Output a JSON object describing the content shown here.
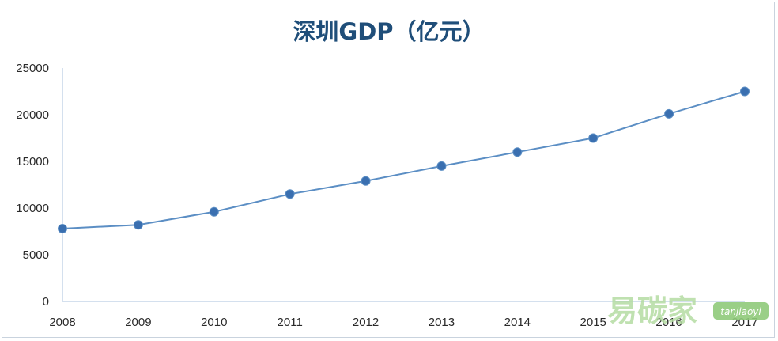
{
  "chart_data": {
    "type": "line",
    "title": "深圳GDP（亿元）",
    "xlabel": "",
    "ylabel": "",
    "categories": [
      "2008",
      "2009",
      "2010",
      "2011",
      "2012",
      "2013",
      "2014",
      "2015",
      "2016",
      "2017"
    ],
    "series": [
      {
        "values": [
          7800,
          8200,
          9600,
          11500,
          12900,
          14500,
          16000,
          17500,
          20100,
          22500
        ]
      }
    ],
    "ylim": [
      0,
      25000
    ],
    "yticks": [
      "0",
      "5000",
      "10000",
      "15000",
      "20000",
      "25000"
    ],
    "grid": false,
    "legend": "none",
    "colors": {
      "line": "#5b8ec4",
      "marker": "#3a6fb0",
      "axis": "#a8c0dc",
      "title": "#1f4e79"
    }
  },
  "watermark": {
    "chinese": "易碳家",
    "latin": "tanjiaoyi",
    "color": "#b5dca3",
    "badge_color": "#8fca7a"
  }
}
